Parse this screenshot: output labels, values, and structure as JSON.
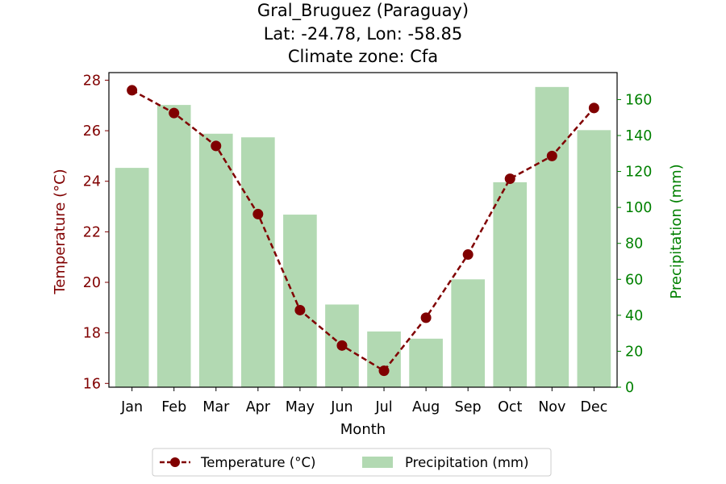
{
  "chart_data": {
    "type": "bar+line",
    "title": [
      "Gral_Bruguez (Paraguay)",
      "Lat: -24.78, Lon: -58.85",
      "Climate zone: Cfa"
    ],
    "xlabel": "Month",
    "ylabel_left": "Temperature (°C)",
    "ylabel_right": "Precipitation (mm)",
    "categories": [
      "Jan",
      "Feb",
      "Mar",
      "Apr",
      "May",
      "Jun",
      "Jul",
      "Aug",
      "Sep",
      "Oct",
      "Nov",
      "Dec"
    ],
    "temperature": {
      "name": "Temperature (°C)",
      "values": [
        27.6,
        26.7,
        25.4,
        22.7,
        18.9,
        17.5,
        16.5,
        18.6,
        21.1,
        24.1,
        25.0,
        26.9
      ],
      "ylim": [
        15.85,
        28.3
      ],
      "yticks": [
        16,
        18,
        20,
        22,
        24,
        26,
        28
      ],
      "color": "#800000"
    },
    "precipitation": {
      "name": "Precipitation (mm)",
      "values": [
        122,
        157,
        141,
        139,
        96,
        46,
        31,
        27,
        60,
        114,
        167,
        143
      ],
      "ylim": [
        0,
        175
      ],
      "yticks": [
        0,
        20,
        40,
        60,
        80,
        100,
        120,
        140,
        160
      ],
      "color": "#b2d9b2"
    },
    "left_axis_color": "#800000",
    "right_axis_color": "#008000",
    "legend": {
      "placement": "bottom-center",
      "entries": [
        "Temperature (°C)",
        "Precipitation (mm)"
      ]
    },
    "grid": false
  }
}
